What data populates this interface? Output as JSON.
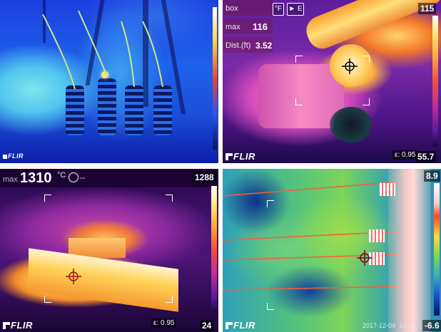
{
  "panels": {
    "p1": {
      "scale_top": "",
      "flir_label": "FLIR"
    },
    "p2": {
      "mode_label": "box",
      "unit_label": "°F",
      "e_label": "E",
      "max_label": "max",
      "max_value": "116",
      "dist_label": "Dist.(ft)",
      "dist_value": "3.52",
      "scale_top": "115",
      "scale_bottom": "55.7",
      "emissivity": "ε: 0.95",
      "flir_label": "FLIR"
    },
    "p3": {
      "max_label": "max",
      "max_value": "1310",
      "unit_label": "°C",
      "scale_top": "1288",
      "scale_bottom": "24",
      "emissivity": "ε: 0.95",
      "flir_label": "FLIR"
    },
    "p4": {
      "scale_top": "8.9",
      "scale_bottom": "-6.6",
      "date": "2017-12-04",
      "time": "14:56",
      "flir_label": "FLIR"
    }
  },
  "colors": {
    "ironbow_hot": "#ffd25a",
    "rainbow_cold": "#1c3ee0",
    "frame_bg": "#ffffff"
  }
}
